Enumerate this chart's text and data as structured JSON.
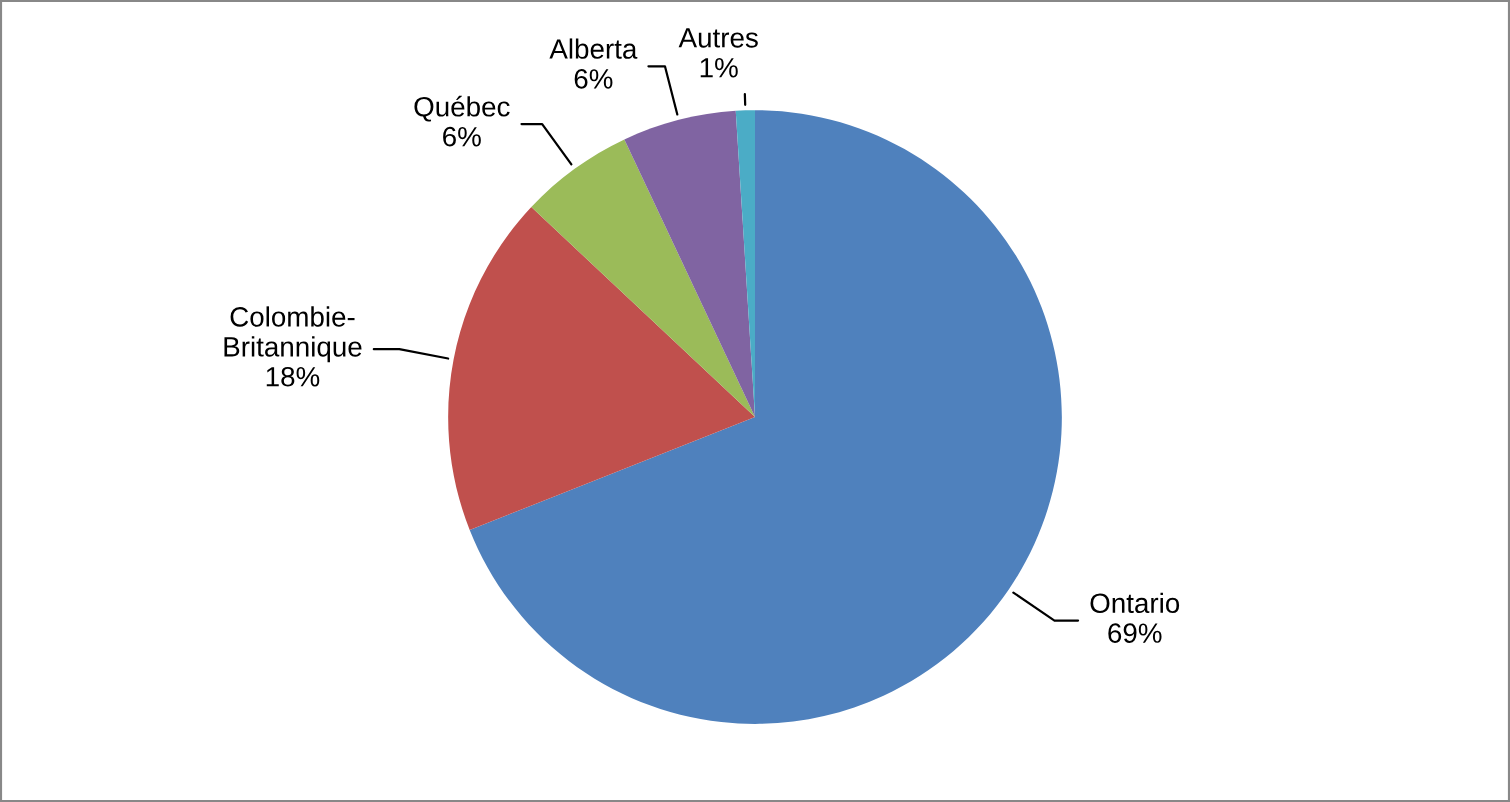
{
  "chart_data": {
    "type": "pie",
    "categories": [
      "Ontario",
      "Colombie-\nBritannique",
      "Québec",
      "Alberta",
      "Autres"
    ],
    "values": [
      69,
      18,
      6,
      6,
      1
    ],
    "colors": [
      "#4f81bd",
      "#c0504d",
      "#9bbb59",
      "#8064a2",
      "#4bacc6"
    ],
    "value_labels": [
      "69%",
      "18%",
      "6%",
      "6%",
      "1%"
    ],
    "legend": false
  }
}
